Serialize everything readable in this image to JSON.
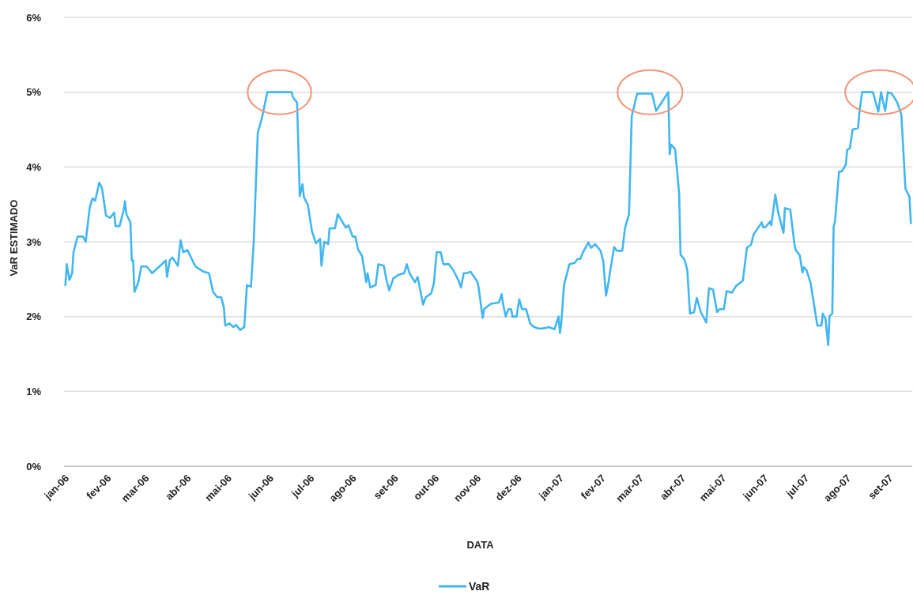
{
  "chart_data": {
    "type": "line",
    "xlabel": "DATA",
    "ylabel": "VaR ESTIMADO",
    "x": [
      "2005-12-30",
      "2005-12-31",
      "2006-01-02",
      "2006-01-04",
      "2006-01-05",
      "2006-01-08",
      "2006-01-12",
      "2006-01-14",
      "2006-01-17",
      "2006-01-19",
      "2006-01-21",
      "2006-01-24",
      "2006-01-26",
      "2006-01-29",
      "2006-02-01",
      "2006-02-04",
      "2006-02-05",
      "2006-02-08",
      "2006-02-11",
      "2006-02-12",
      "2006-02-13",
      "2006-02-16",
      "2006-02-17",
      "2006-02-18",
      "2006-02-19",
      "2006-02-22",
      "2006-02-24",
      "2006-02-28",
      "2006-03-04",
      "2006-03-10",
      "2006-03-14",
      "2006-03-15",
      "2006-03-17",
      "2006-03-19",
      "2006-03-23",
      "2006-03-25",
      "2006-03-27",
      "2006-03-30",
      "2006-04-05",
      "2006-04-11",
      "2006-04-15",
      "2006-04-18",
      "2006-04-21",
      "2006-04-24",
      "2006-04-26",
      "2006-04-27",
      "2006-04-30",
      "2006-05-03",
      "2006-05-05",
      "2006-05-08",
      "2006-05-11",
      "2006-05-13",
      "2006-05-16",
      "2006-05-18",
      "2006-05-21",
      "2006-05-24",
      "2006-05-28",
      "2006-06-15",
      "2006-06-16",
      "2006-06-19",
      "2006-06-21",
      "2006-06-23",
      "2006-06-24",
      "2006-06-27",
      "2006-06-30",
      "2006-07-03",
      "2006-07-06",
      "2006-07-07",
      "2006-07-09",
      "2006-07-12",
      "2006-07-13",
      "2006-07-17",
      "2006-07-19",
      "2006-07-22",
      "2006-07-25",
      "2006-07-27",
      "2006-07-30",
      "2006-08-01",
      "2006-08-03",
      "2006-08-06",
      "2006-08-09",
      "2006-08-10",
      "2006-08-12",
      "2006-08-16",
      "2006-08-18",
      "2006-08-22",
      "2006-08-24",
      "2006-08-26",
      "2006-08-29",
      "2006-09-02",
      "2006-09-06",
      "2006-09-08",
      "2006-09-10",
      "2006-09-14",
      "2006-09-16",
      "2006-09-20",
      "2006-09-22",
      "2006-09-26",
      "2006-09-28",
      "2006-09-30",
      "2006-10-03",
      "2006-10-05",
      "2006-10-09",
      "2006-10-12",
      "2006-10-16",
      "2006-10-18",
      "2006-10-20",
      "2006-10-22",
      "2006-10-25",
      "2006-10-30",
      "2006-10-31",
      "2006-11-03",
      "2006-11-04",
      "2006-11-09",
      "2006-11-15",
      "2006-11-17",
      "2006-11-18",
      "2006-11-20",
      "2006-11-22",
      "2006-11-24",
      "2006-11-25",
      "2006-11-28",
      "2006-11-30",
      "2006-12-02",
      "2006-12-05",
      "2006-12-08",
      "2006-12-10",
      "2006-12-14",
      "2006-12-17",
      "2006-12-22",
      "2006-12-26",
      "2006-12-29",
      "2006-12-30",
      "2006-12-31",
      "2007-01-02",
      "2007-01-06",
      "2007-01-10",
      "2007-01-12",
      "2007-01-14",
      "2007-01-16",
      "2007-01-20",
      "2007-01-22",
      "2007-01-25",
      "2007-01-29",
      "2007-01-31",
      "2007-02-02",
      "2007-02-04",
      "2007-02-05",
      "2007-02-08",
      "2007-02-10",
      "2007-02-14",
      "2007-02-16",
      "2007-02-19",
      "2007-02-21",
      "2007-02-25",
      "2007-03-08",
      "2007-03-11",
      "2007-03-20",
      "2007-03-21",
      "2007-03-22",
      "2007-03-25",
      "2007-03-28",
      "2007-03-29",
      "2007-04-01",
      "2007-04-03",
      "2007-04-05",
      "2007-04-08",
      "2007-04-10",
      "2007-04-13",
      "2007-04-17",
      "2007-04-19",
      "2007-04-22",
      "2007-04-25",
      "2007-04-27",
      "2007-04-30",
      "2007-05-02",
      "2007-05-06",
      "2007-05-09",
      "2007-05-14",
      "2007-05-17",
      "2007-05-20",
      "2007-05-22",
      "2007-05-28",
      "2007-05-29",
      "2007-05-31",
      "2007-06-03",
      "2007-06-04",
      "2007-06-07",
      "2007-06-09",
      "2007-06-13",
      "2007-06-14",
      "2007-06-18",
      "2007-06-21",
      "2007-06-22",
      "2007-06-25",
      "2007-06-27",
      "2007-06-28",
      "2007-06-30",
      "2007-07-03",
      "2007-07-08",
      "2007-07-11",
      "2007-07-12",
      "2007-07-14",
      "2007-07-16",
      "2007-07-17",
      "2007-07-19",
      "2007-07-20",
      "2007-07-21",
      "2007-07-24",
      "2007-07-26",
      "2007-07-29",
      "2007-07-30",
      "2007-08-01",
      "2007-08-03",
      "2007-08-07",
      "2007-08-08",
      "2007-08-10",
      "2007-08-18",
      "2007-08-22",
      "2007-08-24",
      "2007-08-27",
      "2007-08-29",
      "2007-09-01",
      "2007-09-05",
      "2007-09-08",
      "2007-09-11",
      "2007-09-14",
      "2007-09-15"
    ],
    "series": [
      {
        "name": "VaR",
        "color": "#41b6f0",
        "values": [
          2.42,
          2.7,
          2.49,
          2.58,
          2.86,
          3.07,
          3.07,
          3.0,
          3.46,
          3.58,
          3.55,
          3.79,
          3.72,
          3.35,
          3.32,
          3.39,
          3.21,
          3.21,
          3.42,
          3.54,
          3.37,
          3.26,
          2.75,
          2.75,
          2.33,
          2.47,
          2.67,
          2.67,
          2.58,
          2.68,
          2.75,
          2.53,
          2.75,
          2.79,
          2.68,
          3.02,
          2.86,
          2.89,
          2.67,
          2.6,
          2.58,
          2.33,
          2.26,
          2.26,
          2.12,
          1.88,
          1.91,
          1.86,
          1.89,
          1.82,
          1.86,
          2.42,
          2.4,
          3.0,
          4.46,
          4.65,
          5.0,
          5.0,
          4.93,
          4.86,
          3.61,
          3.77,
          3.6,
          3.49,
          3.14,
          2.98,
          3.04,
          2.68,
          3.0,
          2.97,
          3.18,
          3.18,
          3.37,
          3.28,
          3.19,
          3.22,
          3.07,
          3.07,
          2.9,
          2.81,
          2.46,
          2.58,
          2.39,
          2.42,
          2.7,
          2.68,
          2.49,
          2.35,
          2.51,
          2.56,
          2.58,
          2.7,
          2.58,
          2.46,
          2.53,
          2.16,
          2.26,
          2.31,
          2.45,
          2.86,
          2.86,
          2.7,
          2.7,
          2.63,
          2.49,
          2.39,
          2.58,
          2.58,
          2.6,
          2.47,
          2.39,
          1.98,
          2.1,
          2.17,
          2.19,
          2.3,
          2.17,
          2.0,
          2.1,
          2.1,
          2.0,
          2.0,
          2.23,
          2.1,
          2.1,
          1.91,
          1.87,
          1.84,
          1.84,
          1.86,
          1.83,
          2.0,
          1.78,
          1.91,
          2.42,
          2.7,
          2.72,
          2.77,
          2.77,
          2.86,
          2.99,
          2.92,
          2.97,
          2.88,
          2.74,
          2.28,
          2.47,
          2.6,
          2.93,
          2.88,
          2.88,
          3.18,
          3.37,
          4.68,
          4.98,
          4.98,
          4.75,
          5.0,
          4.17,
          4.3,
          4.24,
          3.64,
          2.83,
          2.76,
          2.62,
          2.04,
          2.06,
          2.25,
          2.06,
          1.92,
          2.38,
          2.36,
          2.06,
          2.1,
          2.1,
          2.34,
          2.32,
          2.41,
          2.48,
          2.92,
          2.96,
          3.1,
          3.26,
          3.19,
          3.2,
          3.27,
          3.22,
          3.63,
          3.4,
          3.12,
          3.45,
          3.43,
          2.98,
          2.89,
          2.82,
          2.59,
          2.66,
          2.62,
          2.45,
          1.88,
          1.88,
          2.04,
          1.97,
          1.62,
          2.01,
          2.04,
          3.2,
          3.27,
          3.94,
          3.94,
          4.03,
          4.23,
          4.25,
          4.5,
          4.52,
          4.72,
          5.0,
          5.0,
          4.74,
          5.0,
          4.75,
          5.0,
          4.98,
          4.86,
          4.7,
          3.71,
          3.6,
          3.25
        ]
      }
    ],
    "xlim": [
      "2005-12-29",
      "2007-09-16"
    ],
    "xticks": [
      {
        "value": "2006-01-01",
        "label": "jan-06"
      },
      {
        "value": "2006-02-01",
        "label": "fev-06"
      },
      {
        "value": "2006-03-01",
        "label": "mar-06"
      },
      {
        "value": "2006-04-01",
        "label": "abr-06"
      },
      {
        "value": "2006-05-01",
        "label": "mai-06"
      },
      {
        "value": "2006-06-01",
        "label": "jun-06"
      },
      {
        "value": "2006-07-01",
        "label": "jul-06"
      },
      {
        "value": "2006-08-01",
        "label": "ago-06"
      },
      {
        "value": "2006-09-01",
        "label": "set-06"
      },
      {
        "value": "2006-10-01",
        "label": "out-06"
      },
      {
        "value": "2006-11-01",
        "label": "nov-06"
      },
      {
        "value": "2006-12-01",
        "label": "dez-06"
      },
      {
        "value": "2007-01-01",
        "label": "jan-07"
      },
      {
        "value": "2007-02-01",
        "label": "fev-07"
      },
      {
        "value": "2007-03-01",
        "label": "mar-07"
      },
      {
        "value": "2007-04-01",
        "label": "abr-07"
      },
      {
        "value": "2007-05-01",
        "label": "mai-07"
      },
      {
        "value": "2007-06-01",
        "label": "jun-07"
      },
      {
        "value": "2007-07-01",
        "label": "jul-07"
      },
      {
        "value": "2007-08-01",
        "label": "ago-07"
      },
      {
        "value": "2007-09-01",
        "label": "set-07"
      }
    ],
    "ylim": [
      0,
      6
    ],
    "yticks": [
      {
        "value": 0,
        "label": "0%"
      },
      {
        "value": 1,
        "label": "1%"
      },
      {
        "value": 2,
        "label": "2%"
      },
      {
        "value": 3,
        "label": "3%"
      },
      {
        "value": 4,
        "label": "4%"
      },
      {
        "value": 5,
        "label": "5%"
      },
      {
        "value": 6,
        "label": "6%"
      }
    ],
    "grid": "y",
    "legend": "bottom",
    "marker": "none",
    "line_style": "solid"
  }
}
